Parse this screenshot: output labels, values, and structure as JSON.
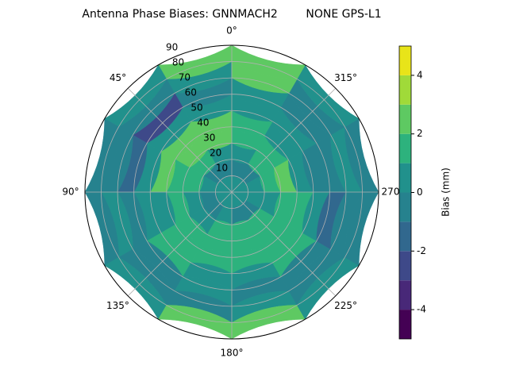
{
  "chart_data": {
    "type": "polar_contour",
    "title": "Antenna Phase Biases: GNNMACH2        NONE GPS-L1",
    "theta_zero": "N",
    "theta_direction": -1,
    "xticks": [
      {
        "value": 0,
        "label": "0°"
      },
      {
        "value": 45,
        "label": "45°"
      },
      {
        "value": 90,
        "label": "90°"
      },
      {
        "value": 135,
        "label": "135°"
      },
      {
        "value": 180,
        "label": "180°"
      },
      {
        "value": 225,
        "label": "225°"
      },
      {
        "value": 270,
        "label": "270°"
      },
      {
        "value": 315,
        "label": "315°"
      }
    ],
    "ylim": [
      0,
      90
    ],
    "yticks": [
      10,
      20,
      30,
      40,
      50,
      60,
      70,
      80,
      90
    ],
    "grid": true,
    "zenith_edges": [
      0,
      10,
      20,
      30,
      40,
      50,
      60,
      70,
      80,
      90
    ],
    "azimuth_edges": [
      0,
      30,
      60,
      90,
      120,
      150,
      180,
      210,
      240,
      270,
      300,
      330,
      360
    ],
    "z": [
      [
        0.5,
        0.5,
        0.5,
        0.5,
        0.5,
        0.5,
        0.5,
        0.5,
        0.5,
        0.5,
        0.5,
        0.5
      ],
      [
        -0.5,
        -0.5,
        0.5,
        -0.5,
        -0.5,
        0.5,
        -0.5,
        -0.5,
        0.5,
        0.5,
        -0.5,
        -0.5
      ],
      [
        0.5,
        1.5,
        1.5,
        0.5,
        0.5,
        1.5,
        1.5,
        1.5,
        0.5,
        1.5,
        1.5,
        0.5
      ],
      [
        2.5,
        2.5,
        1.5,
        1.5,
        1.5,
        1.5,
        1.5,
        1.5,
        1.5,
        2.5,
        1.5,
        1.5
      ],
      [
        2.5,
        2.5,
        2.5,
        0.5,
        1.5,
        1.5,
        1.5,
        1.5,
        1.5,
        0.5,
        0.5,
        1.5
      ],
      [
        0.5,
        0.5,
        0.5,
        0.5,
        1.5,
        0.5,
        0.5,
        1.5,
        0.5,
        -0.5,
        0.5,
        0.5
      ],
      [
        -0.5,
        -2.5,
        -1.5,
        -0.5,
        -0.5,
        0.5,
        -0.5,
        -0.5,
        -1.5,
        -0.5,
        -0.5,
        0.5
      ],
      [
        0.5,
        -0.5,
        -0.5,
        0.5,
        -0.5,
        -0.5,
        0.5,
        -0.5,
        -0.5,
        0.5,
        -0.5,
        2.5
      ],
      [
        2.5,
        0.5,
        -0.5,
        -0.5,
        0.5,
        2.5,
        2.5,
        0.5,
        -0.5,
        -0.5,
        0.5,
        2.5
      ]
    ],
    "levels": [
      -5,
      -4,
      -3,
      -2,
      -1,
      0,
      1,
      2,
      3,
      4,
      5
    ],
    "colors": [
      "#440154",
      "#482878",
      "#3e4989",
      "#31688e",
      "#26828e",
      "#21918c",
      "#2db27d",
      "#5ec962",
      "#a0da39",
      "#e8e419"
    ],
    "colorbar_label": "Bias (mm)",
    "clim": [
      -5,
      5
    ],
    "cticks": [
      -4,
      -2,
      0,
      2,
      4
    ]
  }
}
